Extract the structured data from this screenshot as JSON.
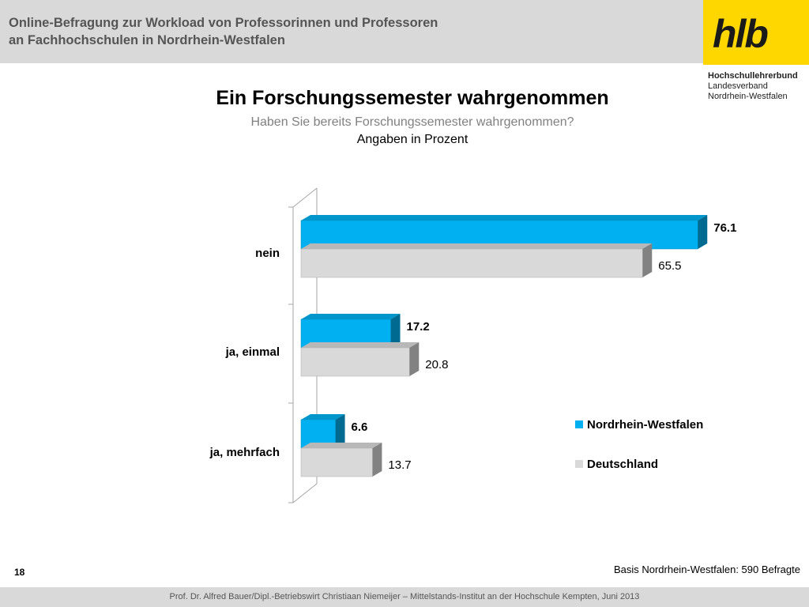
{
  "header": {
    "title_line1": "Online-Befragung  zur  Workload von Professorinnen und Professoren",
    "title_line2": "an Fachhochschulen in Nordrhein-Westfalen"
  },
  "logo": {
    "text": "hlb",
    "org_name": "Hochschullehrerbund",
    "org_sub1": "Landesverband",
    "org_sub2": "Nordrhein-Westfalen"
  },
  "slide_number": "18",
  "basis_note": "Basis Nordrhein-Westfalen: 590 Befragte",
  "footer": "Prof. Dr. Alfred Bauer/Dipl.-Betriebswirt Christiaan Niemeijer – Mittelstands-Institut an der Hochschule Kempten, Juni 2013",
  "colors": {
    "nrw": "#00b0f0",
    "deutschland": "#d9d9d9",
    "header_bg": "#d9d9d9",
    "logo_bg": "#ffd700"
  },
  "chart_data": {
    "type": "bar",
    "orientation": "horizontal",
    "title": "Ein Forschungssemester wahrgenommen",
    "subtitle": "Haben Sie bereits Forschungssemester wahrgenommen?",
    "unit_note": "Angaben in Prozent",
    "categories": [
      "nein",
      "ja, einmal",
      "ja, mehrfach"
    ],
    "series": [
      {
        "name": "Nordrhein-Westfalen",
        "values": [
          76.1,
          17.2,
          6.6
        ],
        "color": "#00b0f0"
      },
      {
        "name": "Deutschland",
        "values": [
          65.5,
          20.8,
          13.7
        ],
        "color": "#d9d9d9"
      }
    ],
    "xlim": [
      0,
      80
    ],
    "legend_position": "right",
    "grid": false,
    "style": "3d"
  }
}
